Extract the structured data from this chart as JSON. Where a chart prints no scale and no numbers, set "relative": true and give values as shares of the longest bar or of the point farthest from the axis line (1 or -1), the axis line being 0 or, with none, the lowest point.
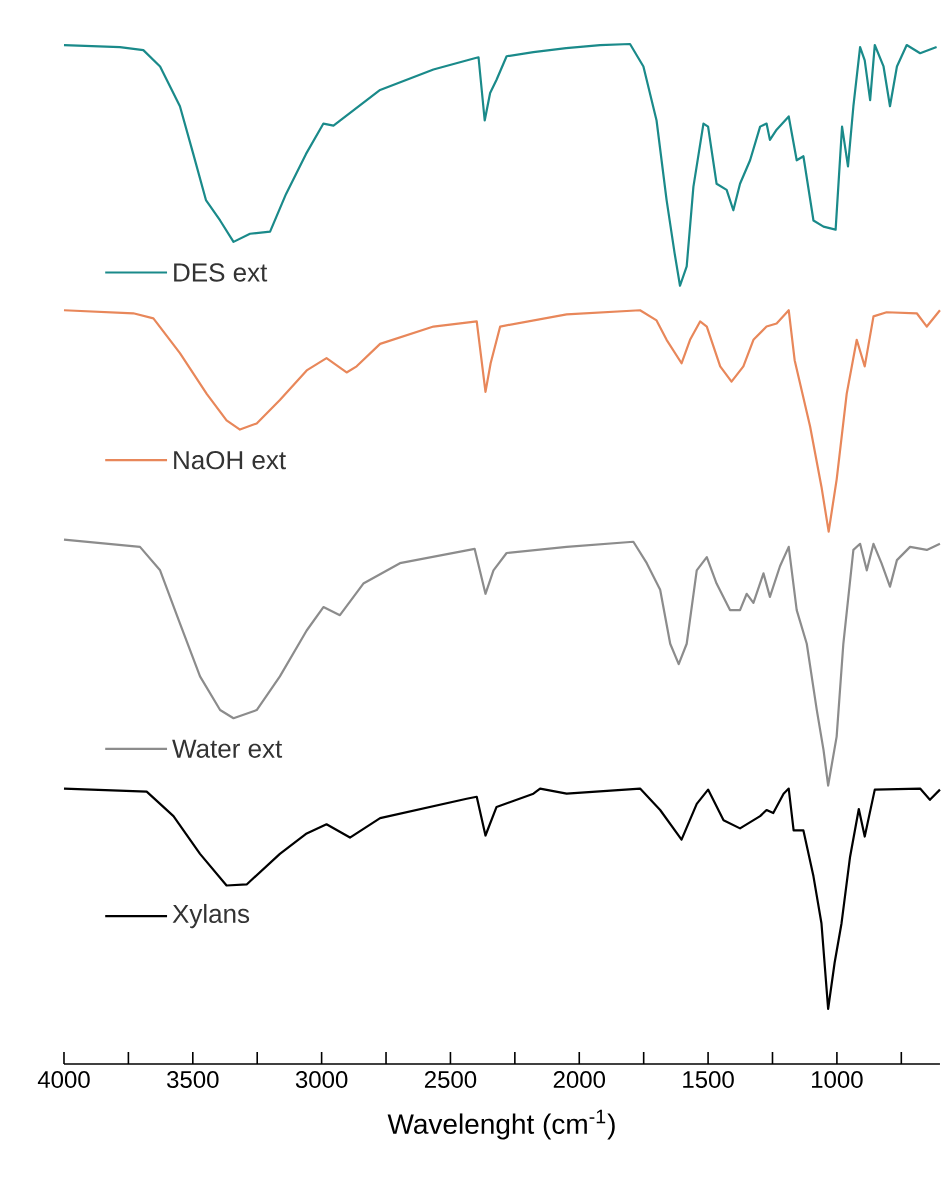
{
  "chart_data": {
    "type": "line",
    "relative": true,
    "xlabel": "Wavelenght (cm$^{-1}$)",
    "xlim": [
      4000,
      600
    ],
    "xticks": [
      4000,
      {
        "value": 3750,
        "label": null
      },
      3500,
      {
        "value": 3250,
        "label": null
      },
      3000,
      {
        "value": 2750,
        "label": null
      },
      2500,
      {
        "value": 2250,
        "label": null
      },
      2000,
      {
        "value": 1750,
        "label": null
      },
      1500,
      {
        "value": 1250,
        "label": null
      },
      1000,
      {
        "value": 750,
        "label": null
      }
    ],
    "tick_labels": "x",
    "grid": false,
    "legend": "left",
    "marker": "none",
    "line_style": "solid",
    "series": [
      {
        "name": "DES ext",
        "color": "#1a8a8a",
        "x": [
          4000,
          3783,
          3692,
          3627,
          3550,
          3498,
          3449,
          3394,
          3342,
          3278,
          3200,
          3138,
          3061,
          2993,
          2954,
          2773,
          2566,
          2406,
          2391,
          2367,
          2346,
          2321,
          2282,
          2178,
          2051,
          1919,
          1803,
          1751,
          1700,
          1661,
          1630,
          1609,
          1583,
          1557,
          1518,
          1500,
          1467,
          1428,
          1402,
          1376,
          1337,
          1298,
          1273,
          1260,
          1234,
          1187,
          1156,
          1130,
          1091,
          1052,
          1005,
          980,
          957,
          936,
          910,
          892,
          871,
          853,
          819,
          794,
          767,
          729,
          677,
          613
        ],
        "values": [
          0.999,
          0.997,
          0.994,
          0.978,
          0.939,
          0.892,
          0.847,
          0.827,
          0.806,
          0.814,
          0.816,
          0.853,
          0.892,
          0.922,
          0.92,
          0.955,
          0.975,
          0.986,
          0.987,
          0.925,
          0.952,
          0.965,
          0.988,
          0.992,
          0.996,
          0.999,
          1,
          0.978,
          0.925,
          0.847,
          0.795,
          0.763,
          0.782,
          0.86,
          0.922,
          0.919,
          0.863,
          0.857,
          0.837,
          0.863,
          0.886,
          0.919,
          0.922,
          0.906,
          0.916,
          0.929,
          0.886,
          0.89,
          0.827,
          0.821,
          0.818,
          0.919,
          0.88,
          0.939,
          0.997,
          0.984,
          0.945,
          0.999,
          0.978,
          0.939,
          0.978,
          0.999,
          0.991,
          0.997
        ]
      },
      {
        "name": "NaOH ext",
        "color": "#e8875a",
        "x": [
          4000,
          3731,
          3653,
          3550,
          3446,
          3369,
          3317,
          3252,
          3162,
          3058,
          2981,
          2903,
          2864,
          2773,
          2566,
          2398,
          2364,
          2344,
          2307,
          2049,
          1764,
          1700,
          1661,
          1603,
          1570,
          1531,
          1505,
          1453,
          1409,
          1363,
          1324,
          1273,
          1234,
          1187,
          1164,
          1104,
          1060,
          1032,
          1001,
          962,
          923,
          892,
          858,
          807,
          690,
          651,
          600
        ],
        "values": [
          0.739,
          0.736,
          0.731,
          0.697,
          0.657,
          0.631,
          0.622,
          0.628,
          0.651,
          0.68,
          0.692,
          0.678,
          0.684,
          0.706,
          0.723,
          0.728,
          0.659,
          0.687,
          0.723,
          0.735,
          0.739,
          0.729,
          0.71,
          0.687,
          0.71,
          0.728,
          0.723,
          0.684,
          0.669,
          0.684,
          0.71,
          0.723,
          0.726,
          0.739,
          0.69,
          0.625,
          0.566,
          0.522,
          0.573,
          0.657,
          0.71,
          0.684,
          0.733,
          0.737,
          0.736,
          0.723,
          0.739
        ]
      },
      {
        "name": "Water ext",
        "color": "#8c8c8c",
        "x": [
          4000,
          3705,
          3627,
          3550,
          3472,
          3394,
          3342,
          3252,
          3162,
          3058,
          2993,
          2929,
          2838,
          2696,
          2406,
          2364,
          2333,
          2282,
          2049,
          1790,
          1738,
          1686,
          1647,
          1614,
          1583,
          1544,
          1505,
          1467,
          1415,
          1376,
          1350,
          1324,
          1285,
          1260,
          1221,
          1187,
          1156,
          1117,
          1078,
          1052,
          1034,
          1001,
          975,
          936,
          910,
          884,
          858,
          827,
          794,
          767,
          716,
          651,
          600
        ],
        "values": [
          0.514,
          0.507,
          0.484,
          0.432,
          0.38,
          0.347,
          0.339,
          0.347,
          0.38,
          0.425,
          0.448,
          0.44,
          0.471,
          0.491,
          0.505,
          0.461,
          0.484,
          0.501,
          0.507,
          0.512,
          0.491,
          0.465,
          0.412,
          0.392,
          0.412,
          0.484,
          0.497,
          0.471,
          0.445,
          0.445,
          0.461,
          0.452,
          0.481,
          0.458,
          0.488,
          0.507,
          0.445,
          0.412,
          0.347,
          0.308,
          0.273,
          0.321,
          0.412,
          0.504,
          0.51,
          0.484,
          0.51,
          0.491,
          0.468,
          0.494,
          0.507,
          0.504,
          0.51
        ]
      },
      {
        "name": "Xylans",
        "color": "#000000",
        "x": [
          4000,
          3679,
          3575,
          3472,
          3369,
          3291,
          3162,
          3058,
          2981,
          2890,
          2773,
          2437,
          2398,
          2364,
          2321,
          2178,
          2152,
          2049,
          1764,
          1686,
          1603,
          1544,
          1500,
          1440,
          1376,
          1298,
          1273,
          1247,
          1207,
          1187,
          1168,
          1130,
          1091,
          1060,
          1034,
          1009,
          982,
          949,
          915,
          892,
          853,
          677,
          639,
          600
        ],
        "values": [
          0.27,
          0.267,
          0.243,
          0.206,
          0.175,
          0.176,
          0.206,
          0.226,
          0.235,
          0.222,
          0.241,
          0.26,
          0.262,
          0.224,
          0.252,
          0.265,
          0.27,
          0.265,
          0.27,
          0.249,
          0.22,
          0.255,
          0.269,
          0.239,
          0.231,
          0.243,
          0.249,
          0.246,
          0.265,
          0.27,
          0.229,
          0.229,
          0.184,
          0.138,
          0.054,
          0.099,
          0.138,
          0.203,
          0.25,
          0.223,
          0.269,
          0.27,
          0.259,
          0.269
        ]
      }
    ]
  }
}
